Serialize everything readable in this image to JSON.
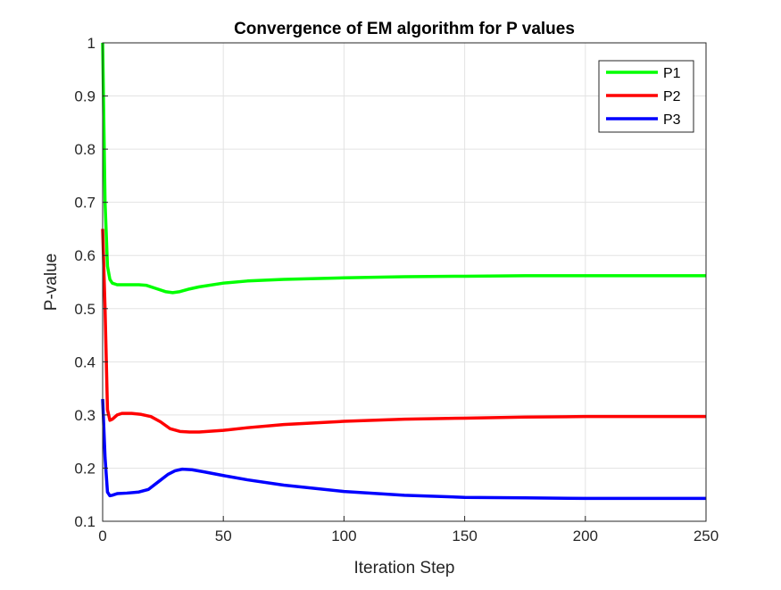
{
  "chart_data": {
    "type": "line",
    "title": "Convergence of EM algorithm for P values",
    "xlabel": "Iteration Step",
    "ylabel": "P-value",
    "xlim": [
      0,
      250
    ],
    "ylim": [
      0.1,
      1
    ],
    "xticks": [
      0,
      50,
      100,
      150,
      200,
      250
    ],
    "yticks": [
      0.1,
      0.2,
      0.3,
      0.4,
      0.5,
      0.6,
      0.7,
      0.8,
      0.9,
      1
    ],
    "xtick_labels": [
      "0",
      "50",
      "100",
      "150",
      "200",
      "250"
    ],
    "ytick_labels": [
      "0.1",
      "0.2",
      "0.3",
      "0.4",
      "0.5",
      "0.6",
      "0.7",
      "0.8",
      "0.9",
      "1"
    ],
    "grid": true,
    "legend_position": "top-right",
    "series": [
      {
        "name": "P1",
        "color": "#00ff00",
        "points": [
          [
            0,
            1.0
          ],
          [
            1,
            0.7
          ],
          [
            2,
            0.58
          ],
          [
            3,
            0.555
          ],
          [
            4,
            0.548
          ],
          [
            6,
            0.545
          ],
          [
            10,
            0.545
          ],
          [
            15,
            0.545
          ],
          [
            18,
            0.544
          ],
          [
            22,
            0.538
          ],
          [
            26,
            0.532
          ],
          [
            29,
            0.53
          ],
          [
            32,
            0.532
          ],
          [
            36,
            0.537
          ],
          [
            40,
            0.541
          ],
          [
            50,
            0.548
          ],
          [
            60,
            0.552
          ],
          [
            75,
            0.555
          ],
          [
            100,
            0.558
          ],
          [
            125,
            0.56
          ],
          [
            150,
            0.561
          ],
          [
            175,
            0.562
          ],
          [
            200,
            0.562
          ],
          [
            225,
            0.562
          ],
          [
            250,
            0.562
          ]
        ]
      },
      {
        "name": "P2",
        "color": "#ff0000",
        "points": [
          [
            0,
            0.65
          ],
          [
            1,
            0.5
          ],
          [
            2,
            0.31
          ],
          [
            3,
            0.29
          ],
          [
            4,
            0.292
          ],
          [
            6,
            0.3
          ],
          [
            8,
            0.303
          ],
          [
            12,
            0.303
          ],
          [
            16,
            0.301
          ],
          [
            20,
            0.297
          ],
          [
            24,
            0.287
          ],
          [
            28,
            0.274
          ],
          [
            32,
            0.269
          ],
          [
            36,
            0.268
          ],
          [
            40,
            0.268
          ],
          [
            50,
            0.271
          ],
          [
            60,
            0.276
          ],
          [
            75,
            0.282
          ],
          [
            100,
            0.288
          ],
          [
            125,
            0.292
          ],
          [
            150,
            0.294
          ],
          [
            175,
            0.296
          ],
          [
            200,
            0.297
          ],
          [
            225,
            0.297
          ],
          [
            250,
            0.297
          ]
        ]
      },
      {
        "name": "P3",
        "color": "#0000ff",
        "points": [
          [
            0,
            0.33
          ],
          [
            1,
            0.22
          ],
          [
            2,
            0.155
          ],
          [
            3,
            0.148
          ],
          [
            4,
            0.149
          ],
          [
            6,
            0.152
          ],
          [
            10,
            0.153
          ],
          [
            15,
            0.155
          ],
          [
            19,
            0.16
          ],
          [
            23,
            0.174
          ],
          [
            27,
            0.188
          ],
          [
            30,
            0.195
          ],
          [
            33,
            0.198
          ],
          [
            37,
            0.197
          ],
          [
            42,
            0.193
          ],
          [
            50,
            0.186
          ],
          [
            60,
            0.178
          ],
          [
            75,
            0.168
          ],
          [
            100,
            0.156
          ],
          [
            125,
            0.149
          ],
          [
            150,
            0.145
          ],
          [
            175,
            0.144
          ],
          [
            200,
            0.143
          ],
          [
            225,
            0.143
          ],
          [
            250,
            0.143
          ]
        ]
      }
    ]
  }
}
